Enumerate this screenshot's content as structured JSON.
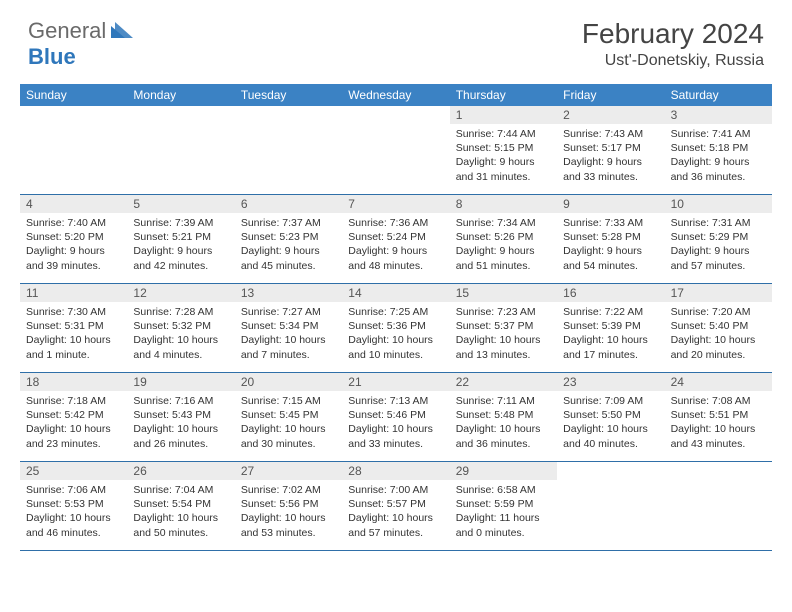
{
  "logo": {
    "general": "General",
    "blue": "Blue"
  },
  "title": {
    "month": "February 2024",
    "location": "Ust'-Donetskiy, Russia"
  },
  "colors": {
    "header_bg": "#3b82c4",
    "header_text": "#ffffff",
    "daynum_bg": "#ececec",
    "border": "#2f6fa8",
    "logo_gray": "#6a6a6a",
    "logo_blue": "#2f77bb"
  },
  "dow": [
    "Sunday",
    "Monday",
    "Tuesday",
    "Wednesday",
    "Thursday",
    "Friday",
    "Saturday"
  ],
  "weeks": [
    [
      null,
      null,
      null,
      null,
      {
        "n": "1",
        "sr": "Sunrise: 7:44 AM",
        "ss": "Sunset: 5:15 PM",
        "dl": "Daylight: 9 hours and 31 minutes."
      },
      {
        "n": "2",
        "sr": "Sunrise: 7:43 AM",
        "ss": "Sunset: 5:17 PM",
        "dl": "Daylight: 9 hours and 33 minutes."
      },
      {
        "n": "3",
        "sr": "Sunrise: 7:41 AM",
        "ss": "Sunset: 5:18 PM",
        "dl": "Daylight: 9 hours and 36 minutes."
      }
    ],
    [
      {
        "n": "4",
        "sr": "Sunrise: 7:40 AM",
        "ss": "Sunset: 5:20 PM",
        "dl": "Daylight: 9 hours and 39 minutes."
      },
      {
        "n": "5",
        "sr": "Sunrise: 7:39 AM",
        "ss": "Sunset: 5:21 PM",
        "dl": "Daylight: 9 hours and 42 minutes."
      },
      {
        "n": "6",
        "sr": "Sunrise: 7:37 AM",
        "ss": "Sunset: 5:23 PM",
        "dl": "Daylight: 9 hours and 45 minutes."
      },
      {
        "n": "7",
        "sr": "Sunrise: 7:36 AM",
        "ss": "Sunset: 5:24 PM",
        "dl": "Daylight: 9 hours and 48 minutes."
      },
      {
        "n": "8",
        "sr": "Sunrise: 7:34 AM",
        "ss": "Sunset: 5:26 PM",
        "dl": "Daylight: 9 hours and 51 minutes."
      },
      {
        "n": "9",
        "sr": "Sunrise: 7:33 AM",
        "ss": "Sunset: 5:28 PM",
        "dl": "Daylight: 9 hours and 54 minutes."
      },
      {
        "n": "10",
        "sr": "Sunrise: 7:31 AM",
        "ss": "Sunset: 5:29 PM",
        "dl": "Daylight: 9 hours and 57 minutes."
      }
    ],
    [
      {
        "n": "11",
        "sr": "Sunrise: 7:30 AM",
        "ss": "Sunset: 5:31 PM",
        "dl": "Daylight: 10 hours and 1 minute."
      },
      {
        "n": "12",
        "sr": "Sunrise: 7:28 AM",
        "ss": "Sunset: 5:32 PM",
        "dl": "Daylight: 10 hours and 4 minutes."
      },
      {
        "n": "13",
        "sr": "Sunrise: 7:27 AM",
        "ss": "Sunset: 5:34 PM",
        "dl": "Daylight: 10 hours and 7 minutes."
      },
      {
        "n": "14",
        "sr": "Sunrise: 7:25 AM",
        "ss": "Sunset: 5:36 PM",
        "dl": "Daylight: 10 hours and 10 minutes."
      },
      {
        "n": "15",
        "sr": "Sunrise: 7:23 AM",
        "ss": "Sunset: 5:37 PM",
        "dl": "Daylight: 10 hours and 13 minutes."
      },
      {
        "n": "16",
        "sr": "Sunrise: 7:22 AM",
        "ss": "Sunset: 5:39 PM",
        "dl": "Daylight: 10 hours and 17 minutes."
      },
      {
        "n": "17",
        "sr": "Sunrise: 7:20 AM",
        "ss": "Sunset: 5:40 PM",
        "dl": "Daylight: 10 hours and 20 minutes."
      }
    ],
    [
      {
        "n": "18",
        "sr": "Sunrise: 7:18 AM",
        "ss": "Sunset: 5:42 PM",
        "dl": "Daylight: 10 hours and 23 minutes."
      },
      {
        "n": "19",
        "sr": "Sunrise: 7:16 AM",
        "ss": "Sunset: 5:43 PM",
        "dl": "Daylight: 10 hours and 26 minutes."
      },
      {
        "n": "20",
        "sr": "Sunrise: 7:15 AM",
        "ss": "Sunset: 5:45 PM",
        "dl": "Daylight: 10 hours and 30 minutes."
      },
      {
        "n": "21",
        "sr": "Sunrise: 7:13 AM",
        "ss": "Sunset: 5:46 PM",
        "dl": "Daylight: 10 hours and 33 minutes."
      },
      {
        "n": "22",
        "sr": "Sunrise: 7:11 AM",
        "ss": "Sunset: 5:48 PM",
        "dl": "Daylight: 10 hours and 36 minutes."
      },
      {
        "n": "23",
        "sr": "Sunrise: 7:09 AM",
        "ss": "Sunset: 5:50 PM",
        "dl": "Daylight: 10 hours and 40 minutes."
      },
      {
        "n": "24",
        "sr": "Sunrise: 7:08 AM",
        "ss": "Sunset: 5:51 PM",
        "dl": "Daylight: 10 hours and 43 minutes."
      }
    ],
    [
      {
        "n": "25",
        "sr": "Sunrise: 7:06 AM",
        "ss": "Sunset: 5:53 PM",
        "dl": "Daylight: 10 hours and 46 minutes."
      },
      {
        "n": "26",
        "sr": "Sunrise: 7:04 AM",
        "ss": "Sunset: 5:54 PM",
        "dl": "Daylight: 10 hours and 50 minutes."
      },
      {
        "n": "27",
        "sr": "Sunrise: 7:02 AM",
        "ss": "Sunset: 5:56 PM",
        "dl": "Daylight: 10 hours and 53 minutes."
      },
      {
        "n": "28",
        "sr": "Sunrise: 7:00 AM",
        "ss": "Sunset: 5:57 PM",
        "dl": "Daylight: 10 hours and 57 minutes."
      },
      {
        "n": "29",
        "sr": "Sunrise: 6:58 AM",
        "ss": "Sunset: 5:59 PM",
        "dl": "Daylight: 11 hours and 0 minutes."
      },
      null,
      null
    ]
  ]
}
